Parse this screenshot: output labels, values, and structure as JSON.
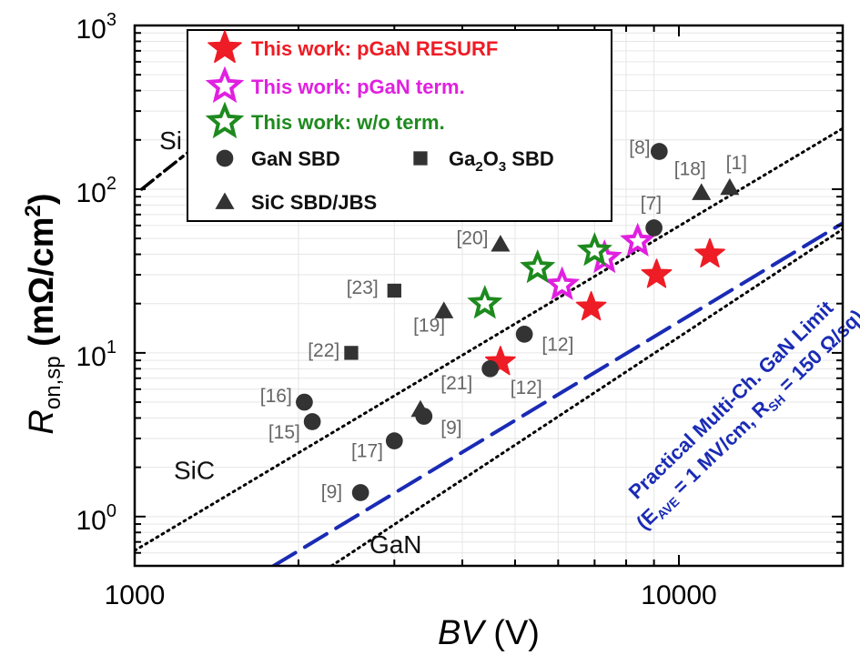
{
  "chart_data": {
    "type": "scatter",
    "x_scale": "log",
    "y_scale": "log",
    "xlim": [
      1000,
      20000
    ],
    "ylim": [
      0.5,
      1000
    ],
    "grid": true,
    "legend_position": "top-left",
    "xlabel_main": "BV",
    "xlabel_unit": "(V)",
    "ylabel_main": "R",
    "ylabel_sub": "on,sp",
    "ylabel_unit_pre": "(mΩ/cm",
    "ylabel_unit_sup": "2",
    "ylabel_unit_post": ")",
    "x_ticks": [
      {
        "value": 1000,
        "label": "1000"
      },
      {
        "value": 10000,
        "label": "10000"
      }
    ],
    "y_ticks": [
      {
        "value": 1,
        "base": "10",
        "exp": "0"
      },
      {
        "value": 10,
        "base": "10",
        "exp": "1"
      },
      {
        "value": 100,
        "base": "10",
        "exp": "2"
      },
      {
        "value": 1000,
        "base": "10",
        "exp": "3"
      }
    ],
    "legend": [
      {
        "key": "resurf",
        "label": "This work: pGaN RESURF",
        "color": "#ee1c25"
      },
      {
        "key": "pgan",
        "label": "This work: pGaN term.",
        "color": "#e020e0"
      },
      {
        "key": "wo",
        "label": "This work: w/o term.",
        "color": "#1e8a1e"
      },
      {
        "key": "gan",
        "label": "GaN SBD",
        "color": "#333333"
      },
      {
        "key": "ga2o3",
        "label_main": "Ga",
        "label_sub1": "2",
        "label_mid": "O",
        "label_sub2": "3",
        "label_post": " SBD",
        "color": "#333333"
      },
      {
        "key": "sic",
        "label": "SiC SBD/JBS",
        "color": "#333333"
      }
    ],
    "series": [
      {
        "key": "resurf",
        "marker": "star-filled",
        "color": "#ee1c25",
        "points": [
          [
            4700,
            8.8
          ],
          [
            6900,
            19
          ],
          [
            9100,
            30
          ],
          [
            11400,
            40
          ]
        ]
      },
      {
        "key": "pgan",
        "marker": "star-open",
        "color": "#e020e0",
        "points": [
          [
            6100,
            26
          ],
          [
            7300,
            38
          ],
          [
            8400,
            48
          ]
        ]
      },
      {
        "key": "wo",
        "marker": "star-open",
        "color": "#1e8a1e",
        "points": [
          [
            4400,
            20
          ],
          [
            5500,
            33
          ],
          [
            7000,
            42
          ]
        ]
      },
      {
        "key": "gan",
        "marker": "circle",
        "color": "#333333",
        "points": [
          [
            9200,
            170
          ],
          [
            9000,
            58
          ],
          [
            5200,
            13
          ],
          [
            4500,
            8
          ],
          [
            3400,
            4.1
          ],
          [
            3000,
            2.9
          ],
          [
            2600,
            1.4
          ],
          [
            2050,
            5
          ],
          [
            2120,
            3.8
          ]
        ]
      },
      {
        "key": "ga2o3",
        "marker": "square",
        "color": "#333333",
        "points": [
          [
            3000,
            24
          ],
          [
            2500,
            10
          ]
        ]
      },
      {
        "key": "sic",
        "marker": "triangle",
        "color": "#333333",
        "points": [
          [
            4700,
            46
          ],
          [
            3700,
            18
          ],
          [
            3350,
            4.5
          ],
          [
            11000,
            95
          ],
          [
            12400,
            102
          ]
        ]
      }
    ],
    "ref_labels": [
      {
        "text": "[8]",
        "x": 8100,
        "y": 165
      },
      {
        "text": "[18]",
        "x": 9800,
        "y": 122
      },
      {
        "text": "[1]",
        "x": 12200,
        "y": 132
      },
      {
        "text": "[7]",
        "x": 8500,
        "y": 75
      },
      {
        "text": "[20]",
        "x": 3900,
        "y": 46
      },
      {
        "text": "[23]",
        "x": 2450,
        "y": 23
      },
      {
        "text": "[19]",
        "x": 3250,
        "y": 13.5
      },
      {
        "text": "[22]",
        "x": 2080,
        "y": 9.5
      },
      {
        "text": "[12]",
        "x": 5600,
        "y": 10.3
      },
      {
        "text": "[12]",
        "x": 4900,
        "y": 5.6
      },
      {
        "text": "[21]",
        "x": 3650,
        "y": 6.0
      },
      {
        "text": "[16]",
        "x": 1700,
        "y": 5.0
      },
      {
        "text": "[15]",
        "x": 1760,
        "y": 3.0
      },
      {
        "text": "[9]",
        "x": 3650,
        "y": 3.2
      },
      {
        "text": "[17]",
        "x": 2500,
        "y": 2.3
      },
      {
        "text": "[9]",
        "x": 2200,
        "y": 1.3
      }
    ],
    "region_labels": [
      {
        "text": "Si",
        "x": 1110,
        "y": 175
      },
      {
        "text": "SiC",
        "x": 1180,
        "y": 1.7
      },
      {
        "text": "GaN",
        "x": 2700,
        "y": 0.6
      }
    ],
    "limit_lines": [
      {
        "name": "Si",
        "style": "dashdot",
        "color": "#000000",
        "points": [
          [
            1030,
            100
          ],
          [
            1400,
            225
          ]
        ]
      },
      {
        "name": "SiC",
        "style": "dotted",
        "color": "#000000",
        "points": [
          [
            1000,
            0.62
          ],
          [
            20000,
            235
          ]
        ]
      },
      {
        "name": "GaN",
        "style": "dotted",
        "color": "#000000",
        "points": [
          [
            2300,
            0.5
          ],
          [
            20000,
            57
          ]
        ]
      },
      {
        "name": "Practical",
        "style": "dashed",
        "color": "#1a2bb5",
        "points": [
          [
            1800,
            0.5
          ],
          [
            20000,
            62
          ]
        ]
      }
    ],
    "limit_annotation": {
      "line1": "Practical Multi-Ch. GaN Limit",
      "line2_pre": "(E",
      "line2_sub1": "AVE",
      "line2_mid": " = 1 MV/cm, R",
      "line2_sub2": "SH",
      "line2_post": " = 150 Ω/sq)"
    }
  }
}
